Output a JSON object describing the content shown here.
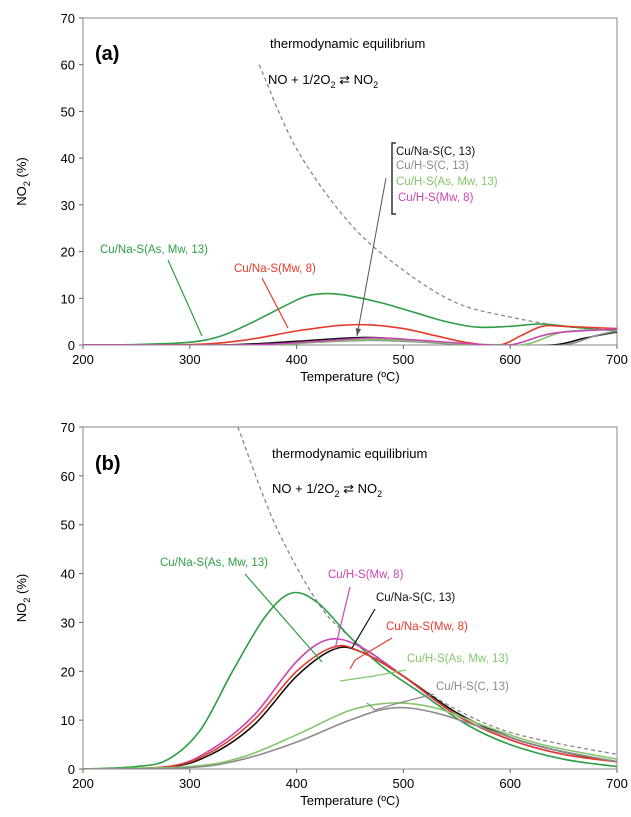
{
  "colors": {
    "green": "#2e9e45",
    "red": "#e53a2c",
    "black": "#111111",
    "gray": "#8c8c8c",
    "light_green": "#84c76a",
    "magenta": "#c846b6",
    "dashed": "#8a8a8a"
  },
  "chart_data": [
    {
      "type": "line",
      "panel_label": "(a)",
      "xlabel": "Temperature (ºC)",
      "ylabel_main": "NO",
      "ylabel_sub": "2",
      "ylabel_unit": " (%)",
      "xlim": [
        200,
        700
      ],
      "ylim": [
        0,
        70
      ],
      "xticks": [
        "200",
        "300",
        "400",
        "500",
        "600",
        "700"
      ],
      "yticks": [
        "0",
        "10",
        "20",
        "30",
        "40",
        "50",
        "60",
        "70"
      ],
      "grid": false,
      "annotation_title": "thermodynamic equilibrium",
      "equation": {
        "left": "NO + 1/2O",
        "left_sub": "2",
        "arrow": "⇄",
        "right": "NO",
        "right_sub": "2"
      },
      "equilibrium": {
        "name": "thermodynamic equilibrium",
        "x": [
          365,
          400,
          450,
          500,
          550,
          600,
          650,
          700
        ],
        "y": [
          60,
          42,
          26,
          16,
          9,
          6,
          4,
          3
        ]
      },
      "series": [
        {
          "name": "Cu/Na-S(As, Mw, 13)",
          "color_key": "green",
          "x": [
            200,
            250,
            300,
            330,
            360,
            390,
            410,
            430,
            450,
            480,
            510,
            540,
            570,
            600,
            630,
            660,
            700
          ],
          "y": [
            0,
            0.1,
            0.6,
            2,
            5,
            8.5,
            10.5,
            11,
            10.5,
            9,
            7,
            5,
            3.8,
            4,
            4.5,
            3.8,
            3
          ]
        },
        {
          "name": "Cu/Na-S(Mw, 8)",
          "color_key": "red",
          "x": [
            200,
            300,
            350,
            400,
            440,
            470,
            500,
            530,
            560,
            590,
            610,
            630,
            650,
            700
          ],
          "y": [
            0,
            0.1,
            1,
            3,
            4.2,
            4.3,
            3.5,
            2,
            0.5,
            0,
            2,
            4,
            4,
            3.5
          ]
        },
        {
          "name": "Cu/Na-S(C, 13)",
          "color_key": "black",
          "x": [
            200,
            330,
            400,
            460,
            500,
            540,
            580,
            640,
            670,
            700
          ],
          "y": [
            0,
            0,
            0.8,
            1.6,
            1.2,
            0.4,
            0,
            0,
            1.5,
            2.8
          ]
        },
        {
          "name": "Cu/H-S(C, 13)",
          "color_key": "gray",
          "x": [
            200,
            360,
            420,
            470,
            510,
            550,
            600,
            650,
            680,
            700
          ],
          "y": [
            0,
            0,
            0.6,
            1,
            0.7,
            0.2,
            0,
            0,
            2,
            3
          ]
        },
        {
          "name": "Cu/H-S(As, Mw, 13)",
          "color_key": "light_green",
          "x": [
            200,
            360,
            420,
            470,
            510,
            550,
            610,
            650,
            700
          ],
          "y": [
            0,
            0,
            0.6,
            1.2,
            0.9,
            0.3,
            0,
            2.8,
            3.3
          ]
        },
        {
          "name": "Cu/H-S(Mw, 8)",
          "color_key": "magenta",
          "x": [
            200,
            350,
            420,
            470,
            510,
            560,
            600,
            640,
            700
          ],
          "y": [
            0,
            0,
            0.8,
            1.5,
            1.1,
            0.3,
            0,
            2.5,
            3.4
          ]
        }
      ],
      "labels": [
        {
          "text": "Cu/Na-S(As, Mw, 13)",
          "color_key": "green"
        },
        {
          "text": "Cu/Na-S(Mw, 8)",
          "color_key": "red"
        },
        {
          "text": "Cu/Na-S(C, 13)",
          "color_key": "black"
        },
        {
          "text": "Cu/H-S(C, 13)",
          "color_key": "gray"
        },
        {
          "text": "Cu/H-S(As, Mw, 13)",
          "color_key": "light_green"
        },
        {
          "text": "Cu/H-S(Mw, 8)",
          "color_key": "magenta"
        }
      ]
    },
    {
      "type": "line",
      "panel_label": "(b)",
      "xlabel": "Temperature (ºC)",
      "ylabel_main": "NO",
      "ylabel_sub": "2",
      "ylabel_unit": " (%)",
      "xlim": [
        200,
        700
      ],
      "ylim": [
        0,
        70
      ],
      "xticks": [
        "200",
        "300",
        "400",
        "500",
        "600",
        "700"
      ],
      "yticks": [
        "0",
        "10",
        "20",
        "30",
        "40",
        "50",
        "60",
        "70"
      ],
      "grid": false,
      "annotation_title": "thermodynamic equilibrium",
      "equation": {
        "left": "NO + 1/2O",
        "left_sub": "2",
        "arrow": "⇄",
        "right": "NO",
        "right_sub": "2"
      },
      "equilibrium": {
        "name": "thermodynamic equilibrium",
        "x": [
          345,
          380,
          420,
          450,
          480,
          520,
          560,
          600,
          650,
          700
        ],
        "y": [
          70,
          50,
          34,
          27,
          22,
          16,
          11,
          7.5,
          5,
          3
        ]
      },
      "series": [
        {
          "name": "Cu/Na-S(As, Mw, 13)",
          "color_key": "green",
          "x": [
            200,
            250,
            280,
            310,
            340,
            370,
            395,
            420,
            450,
            480,
            520,
            560,
            600,
            650,
            700
          ],
          "y": [
            0,
            0.5,
            2,
            8,
            20,
            31,
            36,
            34,
            27,
            21,
            15,
            9,
            5,
            2,
            0.5
          ]
        },
        {
          "name": "Cu/H-S(Mw, 8)",
          "color_key": "magenta",
          "x": [
            200,
            280,
            320,
            360,
            400,
            430,
            460,
            500,
            550,
            600,
            650,
            700
          ],
          "y": [
            0,
            0.5,
            4,
            11,
            22,
            26.5,
            25,
            19,
            11,
            6,
            3,
            1.5
          ]
        },
        {
          "name": "Cu/Na-S(C, 13)",
          "color_key": "black",
          "x": [
            200,
            280,
            320,
            360,
            400,
            435,
            460,
            500,
            550,
            600,
            650,
            700
          ],
          "y": [
            0,
            0.4,
            3,
            9,
            19,
            24.5,
            24,
            19,
            11.5,
            6.5,
            3.5,
            1.5
          ]
        },
        {
          "name": "Cu/Na-S(Mw, 8)",
          "color_key": "red",
          "x": [
            200,
            280,
            320,
            360,
            400,
            435,
            460,
            500,
            550,
            600,
            650,
            700
          ],
          "y": [
            0,
            0.5,
            3.5,
            10,
            20,
            25,
            24,
            19,
            11,
            6,
            3,
            1.5
          ]
        },
        {
          "name": "Cu/H-S(As, Mw, 13)",
          "color_key": "light_green",
          "x": [
            200,
            300,
            350,
            400,
            450,
            490,
            530,
            580,
            630,
            700
          ],
          "y": [
            0,
            0.5,
            2.5,
            7,
            12,
            13.5,
            12.5,
            8.5,
            5,
            2
          ]
        },
        {
          "name": "Cu/H-S(C, 13)",
          "color_key": "gray",
          "x": [
            200,
            300,
            350,
            400,
            450,
            490,
            530,
            580,
            630,
            700
          ],
          "y": [
            0,
            0.3,
            2,
            5.5,
            10,
            12.5,
            11.5,
            8,
            4.5,
            1.5
          ]
        }
      ],
      "labels": [
        {
          "text": "Cu/Na-S(As, Mw, 13)",
          "color_key": "green"
        },
        {
          "text": "Cu/H-S(Mw, 8)",
          "color_key": "magenta"
        },
        {
          "text": "Cu/Na-S(C, 13)",
          "color_key": "black"
        },
        {
          "text": "Cu/Na-S(Mw, 8)",
          "color_key": "red"
        },
        {
          "text": "Cu/H-S(As, Mw, 13)",
          "color_key": "light_green"
        },
        {
          "text": "Cu/H-S(C, 13)",
          "color_key": "gray"
        }
      ]
    }
  ]
}
